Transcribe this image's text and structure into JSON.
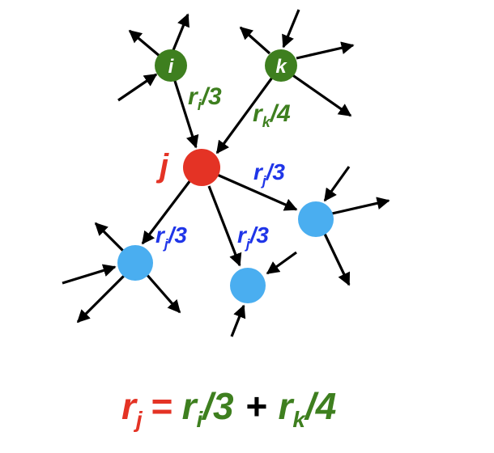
{
  "colors": {
    "green": "#3e7f1f",
    "red": "#e43325",
    "blue_text": "#1f35e8",
    "blue_node": "#4aaef0",
    "black": "#000000"
  },
  "nodes": {
    "i": "i",
    "k": "k",
    "j": "j"
  },
  "edge_labels": {
    "i_to_j": {
      "r": "r",
      "sub": "i",
      "den": "/3"
    },
    "k_to_j": {
      "r": "r",
      "sub": "k",
      "den": "/4"
    },
    "j_out_right": {
      "r": "r",
      "sub": "j",
      "den": "/3"
    },
    "j_out_left": {
      "r": "r",
      "sub": "j",
      "den": "/3"
    },
    "j_out_mid": {
      "r": "r",
      "sub": "j",
      "den": "/3"
    }
  },
  "equation": {
    "lhs_r": "r",
    "lhs_sub": "j",
    "eq": "=",
    "t1_r": "r",
    "t1_sub": "i",
    "t1_den": "/3",
    "plus": "+",
    "t2_r": "r",
    "t2_sub": "k",
    "t2_den": "/4"
  }
}
